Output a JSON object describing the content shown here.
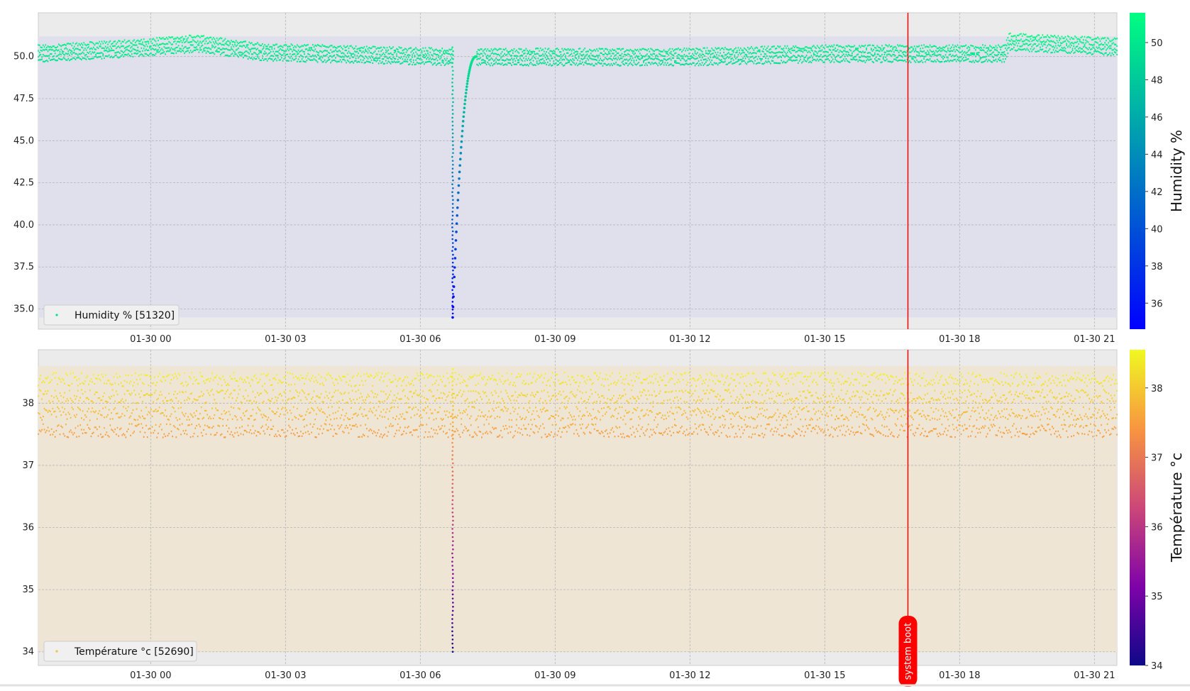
{
  "chart_data": [
    {
      "type": "scatter",
      "series": [
        {
          "name": "Humidity % [51320]",
          "count": 51320
        }
      ],
      "x_ticks": [
        "01-30 00",
        "01-30 03",
        "01-30 06",
        "01-30 09",
        "01-30 12",
        "01-30 15",
        "01-30 18",
        "01-30 21"
      ],
      "x_tick_hours": [
        0,
        3,
        6,
        9,
        12,
        15,
        18,
        21
      ],
      "xlim_hours": [
        -2.5,
        21.5
      ],
      "y_ticks": [
        "35.0",
        "37.5",
        "40.0",
        "42.5",
        "45.0",
        "47.5",
        "50.0"
      ],
      "ylim": [
        33.8,
        52.6
      ],
      "fill_range": [
        34.5,
        51.2
      ],
      "profile": {
        "base": [
          [
            -2.5,
            50.2
          ],
          [
            -0.5,
            50.5
          ],
          [
            1.0,
            50.8
          ],
          [
            2.5,
            50.3
          ],
          [
            6.7,
            50.0
          ],
          [
            7.3,
            50.0
          ],
          [
            12.0,
            50.0
          ],
          [
            15.0,
            50.2
          ],
          [
            19.0,
            50.2
          ],
          [
            19.1,
            50.9
          ],
          [
            21.5,
            50.6
          ]
        ],
        "band_halfwidth": 0.55
      },
      "drop_event": {
        "hour": 6.72,
        "min": 34.5,
        "recover_end_hour": 7.25
      },
      "marker": {
        "hour": 16.85,
        "label": "system boot",
        "color": "#ff0000"
      },
      "colorbar": {
        "label": "Humidity %",
        "ticks": [
          36,
          38,
          40,
          42,
          44,
          46,
          48,
          50
        ],
        "range": [
          34.6,
          51.6
        ],
        "colors": [
          "#0000ff",
          "#00ff80"
        ]
      },
      "legend_position": "lower-left",
      "grid": true
    },
    {
      "type": "scatter",
      "series": [
        {
          "name": "Température °c [52690]",
          "count": 52690
        }
      ],
      "x_ticks": [
        "01-30 00",
        "01-30 03",
        "01-30 06",
        "01-30 09",
        "01-30 12",
        "01-30 15",
        "01-30 18",
        "01-30 21"
      ],
      "x_tick_hours": [
        0,
        3,
        6,
        9,
        12,
        15,
        18,
        21
      ],
      "xlim_hours": [
        -2.5,
        21.5
      ],
      "y_ticks": [
        "34",
        "35",
        "36",
        "37",
        "38"
      ],
      "ylim": [
        33.78,
        38.86
      ],
      "fill_range": [
        34.0,
        38.6
      ],
      "band": [
        37.45,
        38.55
      ],
      "drop_event": {
        "hour": 6.72,
        "min": 34.0
      },
      "marker": {
        "hour": 16.85,
        "label": "system boot",
        "color": "#ff0000"
      },
      "colorbar": {
        "label": "Température °c",
        "ticks": [
          34,
          35,
          36,
          37,
          38
        ],
        "range": [
          34.0,
          38.55
        ],
        "colors": [
          "#0d0887",
          "#7e03a8",
          "#cc4778",
          "#f89540",
          "#f0f921"
        ]
      },
      "legend_position": "lower-left",
      "grid": true
    }
  ]
}
